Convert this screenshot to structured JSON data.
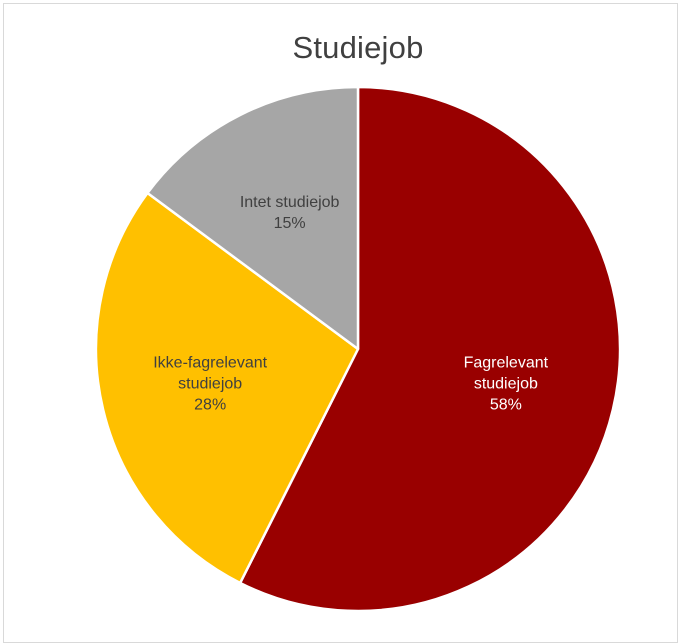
{
  "chart_data": {
    "type": "pie",
    "title": "Studiejob",
    "slices": [
      {
        "label_lines": [
          "Fagrelevant",
          "studiejob"
        ],
        "pct_label": "58%",
        "value": 58,
        "color": "#990000",
        "text_color": "#ffffff"
      },
      {
        "label_lines": [
          "Ikke-fagrelevant",
          "studiejob"
        ],
        "pct_label": "28%",
        "value": 28,
        "color": "#ffc000",
        "text_color": "#404040"
      },
      {
        "label_lines": [
          "Intet studiejob"
        ],
        "pct_label": "15%",
        "value": 15,
        "color": "#a6a6a6",
        "text_color": "#404040"
      }
    ],
    "start_angle_deg": 0,
    "direction": "clockwise",
    "legend": "none",
    "data_labels": "inside"
  }
}
